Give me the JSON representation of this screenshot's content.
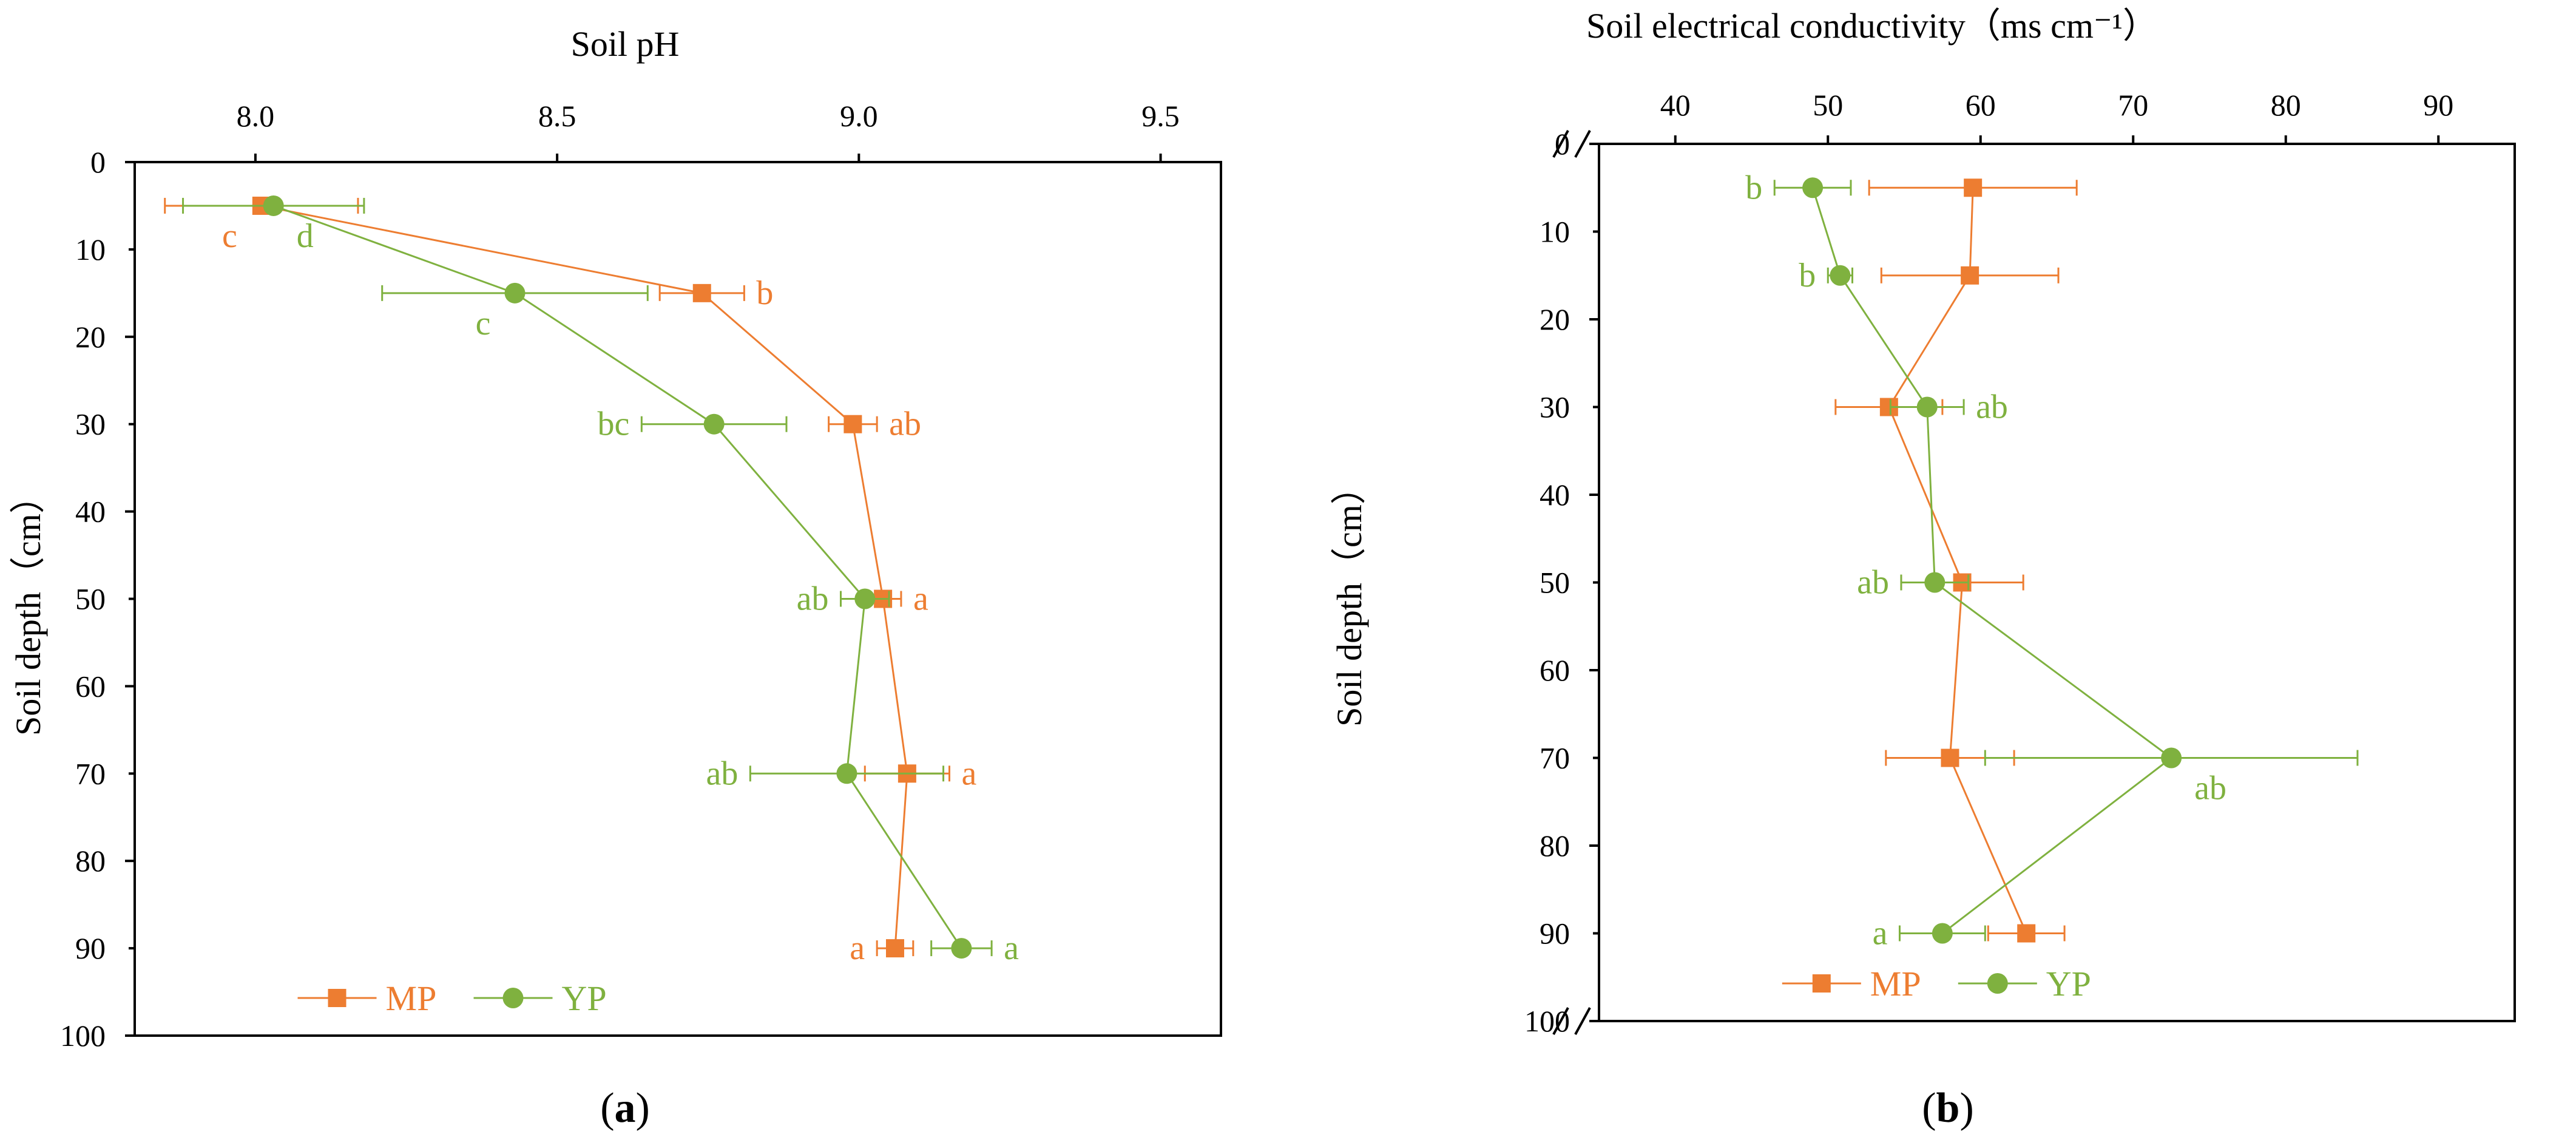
{
  "colors": {
    "mp": "#ED7D31",
    "yp": "#7FB13F",
    "axis": "#000000"
  },
  "chart_data": [
    {
      "type": "line",
      "panel_label": "a",
      "title": "Soil pH",
      "xlabel": "Soil pH",
      "ylabel": "Soil depth（cm）",
      "xlim": [
        7.8,
        9.6
      ],
      "xticks": [
        8.0,
        8.5,
        9.0,
        9.5
      ],
      "xtick_labels": [
        "8.0",
        "8.5",
        "9.0",
        "9.5"
      ],
      "ylim": [
        0,
        100
      ],
      "yticks": [
        0,
        20,
        40,
        60,
        80,
        100
      ],
      "ytick_labels": [
        "0",
        "20",
        "40",
        "60",
        "80",
        "100"
      ],
      "y_inverted": true,
      "axis_break": false,
      "series": [
        {
          "name": "MP",
          "marker": "square",
          "color": "#ED7D31",
          "depth": [
            5,
            15,
            30,
            50,
            70,
            90
          ],
          "values": [
            8.01,
            8.74,
            8.99,
            9.04,
            9.08,
            9.06
          ],
          "error": [
            0.16,
            0.07,
            0.04,
            0.03,
            0.07,
            0.03
          ],
          "letters": [
            "c",
            "b",
            "ab",
            "a",
            "a",
            "a"
          ],
          "letter_side": [
            "below-left",
            "right",
            "right",
            "right",
            "right",
            "left"
          ]
        },
        {
          "name": "YP",
          "marker": "circle",
          "color": "#7FB13F",
          "depth": [
            5,
            15,
            30,
            50,
            70,
            90
          ],
          "values": [
            8.03,
            8.43,
            8.76,
            9.01,
            8.98,
            9.17
          ],
          "error": [
            0.15,
            0.22,
            0.12,
            0.04,
            0.16,
            0.05
          ],
          "letters": [
            "d",
            "c",
            "bc",
            "ab",
            "ab",
            "a"
          ],
          "letter_side": [
            "below-right",
            "below-left",
            "left",
            "left",
            "left",
            "right"
          ]
        }
      ],
      "legend": {
        "position": "bottom-center",
        "entries": [
          "MP",
          "YP"
        ]
      }
    },
    {
      "type": "line",
      "panel_label": "b",
      "title": "Soil electrical conductivity（ms cm⁻¹）",
      "xlabel": "Soil electrical conductivity（ms cm⁻¹）",
      "ylabel": "Soil depth（cm）",
      "xlim": [
        35,
        95
      ],
      "xticks": [
        40,
        50,
        60,
        70,
        80,
        90
      ],
      "xtick_labels": [
        "40",
        "50",
        "60",
        "70",
        "80",
        "90"
      ],
      "ylim": [
        0,
        100
      ],
      "yticks": [
        0,
        20,
        40,
        60,
        80,
        100
      ],
      "ytick_labels": [
        "0",
        "20",
        "40",
        "60",
        "80",
        "100"
      ],
      "y_inverted": true,
      "axis_break": true,
      "series": [
        {
          "name": "MP",
          "marker": "square",
          "color": "#ED7D31",
          "depth": [
            5,
            15,
            30,
            50,
            70,
            90
          ],
          "values": [
            59.5,
            59.3,
            54.0,
            58.8,
            58.0,
            63.0
          ],
          "error": [
            6.8,
            5.8,
            3.5,
            4.0,
            4.2,
            2.5
          ],
          "letters": [
            "",
            "",
            "",
            "",
            "",
            ""
          ],
          "letter_side": [
            "",
            "",
            "",
            "",
            "",
            ""
          ]
        },
        {
          "name": "YP",
          "marker": "circle",
          "color": "#7FB13F",
          "depth": [
            5,
            15,
            30,
            50,
            70,
            90
          ],
          "values": [
            49.0,
            50.8,
            56.5,
            57.0,
            72.5,
            57.5
          ],
          "error": [
            2.5,
            0.8,
            2.4,
            2.2,
            12.2,
            2.8
          ],
          "letters": [
            "b",
            "b",
            "ab",
            "ab",
            "ab",
            "a"
          ],
          "letter_side": [
            "left",
            "left",
            "right",
            "left",
            "below-right",
            "left"
          ]
        }
      ],
      "legend": {
        "position": "bottom-center",
        "entries": [
          "MP",
          "YP"
        ]
      }
    }
  ]
}
